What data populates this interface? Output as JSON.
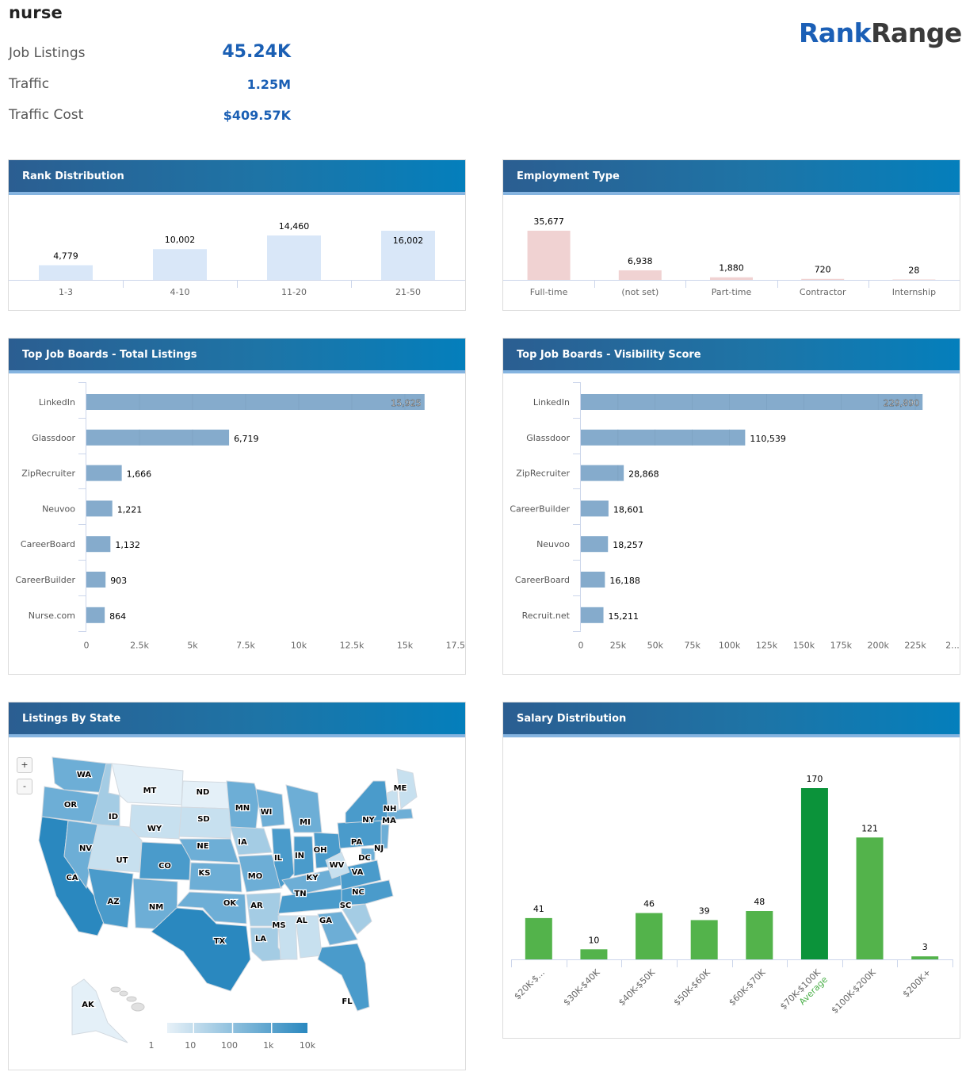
{
  "keyword": "nurse",
  "logo": {
    "part1": "Rank",
    "part2": "Ranger"
  },
  "stats": [
    {
      "label": "Job Listings",
      "value": "45.24K"
    },
    {
      "label": "Traffic",
      "value": "1.25M"
    },
    {
      "label": "Traffic Cost",
      "value": "$409.57K"
    }
  ],
  "colors": {
    "accent": "#1a5fb4",
    "header_start": "#2b5e91",
    "header_end": "#047fbc",
    "rank_bar": "#d9e7f8",
    "employment_bar": "#f0d2d2",
    "job_board_bar": "#85abcc",
    "salary_bar": "#53b34b",
    "salary_highlight": "#0b933a"
  },
  "panels": {
    "rank": {
      "title": "Rank Distribution"
    },
    "employment": {
      "title": "Employment Type"
    },
    "total": {
      "title": "Top Job Boards - Total Listings"
    },
    "visibility": {
      "title": "Top Job Boards - Visibility Score"
    },
    "map": {
      "title": "Listings By State",
      "zoom_in": "+",
      "zoom_out": "-"
    },
    "salary": {
      "title": "Salary Distribution"
    }
  },
  "chart_data": [
    {
      "id": "rank",
      "type": "bar",
      "title": "Rank Distribution",
      "categories": [
        "1-3",
        "4-10",
        "11-20",
        "21-50"
      ],
      "values": [
        4779,
        10002,
        14460,
        16002
      ],
      "labels": [
        "4,779",
        "10,002",
        "14,460",
        "16,002"
      ],
      "ylim": [
        0,
        16002
      ]
    },
    {
      "id": "employment",
      "type": "bar",
      "title": "Employment Type",
      "categories": [
        "Full-time",
        "(not set)",
        "Part-time",
        "Contractor",
        "Internship"
      ],
      "values": [
        35677,
        6938,
        1880,
        720,
        28
      ],
      "labels": [
        "35,677",
        "6,938",
        "1,880",
        "720",
        "28"
      ],
      "ylim": [
        0,
        35677
      ]
    },
    {
      "id": "total",
      "type": "bar",
      "orientation": "horizontal",
      "title": "Top Job Boards - Total Listings",
      "categories": [
        "LinkedIn",
        "Glassdoor",
        "ZipRecruiter",
        "Neuvoo",
        "CareerBoard",
        "CareerBuilder",
        "Nurse.com"
      ],
      "values": [
        15925,
        6719,
        1666,
        1221,
        1132,
        903,
        864
      ],
      "labels": [
        "15,925",
        "6,719",
        "1,666",
        "1,221",
        "1,132",
        "903",
        "864"
      ],
      "xticks": [
        "0",
        "2.5k",
        "5k",
        "7.5k",
        "10k",
        "12.5k",
        "15k",
        "17.5k"
      ],
      "xlim": [
        0,
        17500
      ],
      "grid": true
    },
    {
      "id": "visibility",
      "type": "bar",
      "orientation": "horizontal",
      "title": "Top Job Boards - Visibility Score",
      "categories": [
        "LinkedIn",
        "Glassdoor",
        "ZipRecruiter",
        "CareerBuilder",
        "Neuvoo",
        "CareerBoard",
        "Recruit.net"
      ],
      "values": [
        229890,
        110539,
        28868,
        18601,
        18257,
        16188,
        15211
      ],
      "labels": [
        "229,890",
        "110,539",
        "28,868",
        "18,601",
        "18,257",
        "16,188",
        "15,211"
      ],
      "xticks": [
        "0",
        "25k",
        "50k",
        "75k",
        "100k",
        "125k",
        "150k",
        "175k",
        "200k",
        "225k",
        "2..."
      ],
      "xlim": [
        0,
        250000
      ],
      "grid": true
    },
    {
      "id": "salary",
      "type": "bar",
      "title": "Salary Distribution",
      "categories": [
        "$20K-$...",
        "$30K-$40K",
        "$40K-$50K",
        "$50K-$60K",
        "$60K-$70K",
        "$70K-$100K",
        "$100K-$200K",
        "$200K+"
      ],
      "values": [
        41,
        10,
        46,
        39,
        48,
        170,
        121,
        3
      ],
      "labels": [
        "41",
        "10",
        "46",
        "39",
        "48",
        "170",
        "121",
        "3"
      ],
      "highlight_index": 5,
      "annotation": "Average",
      "ylim": [
        0,
        170
      ]
    },
    {
      "id": "map",
      "type": "heatmap",
      "title": "Listings By State",
      "legend_ticks": [
        "1",
        "10",
        "100",
        "1k",
        "10k"
      ],
      "scale": "log",
      "state_levels": {
        "WA": 3,
        "OR": 3,
        "CA": 5,
        "NV": 3,
        "ID": 2,
        "MT": 0,
        "WY": 1,
        "UT": 1,
        "AZ": 4,
        "CO": 4,
        "NM": 3,
        "ND": 0,
        "SD": 1,
        "NE": 3,
        "KS": 3,
        "OK": 3,
        "TX": 5,
        "MN": 3,
        "IA": 2,
        "MO": 3,
        "AR": 2,
        "LA": 2,
        "WI": 3,
        "IL": 4,
        "MI": 3,
        "IN": 4,
        "OH": 4,
        "KY": 3,
        "TN": 4,
        "MS": 1,
        "AL": 1,
        "GA": 3,
        "FL": 4,
        "SC": 2,
        "NC": 4,
        "VA": 4,
        "WV": 1,
        "PA": 4,
        "NY": 4,
        "NJ": 3,
        "DC": 3,
        "MA": 3,
        "NH": 1,
        "ME": 1,
        "AK": 0
      }
    }
  ]
}
